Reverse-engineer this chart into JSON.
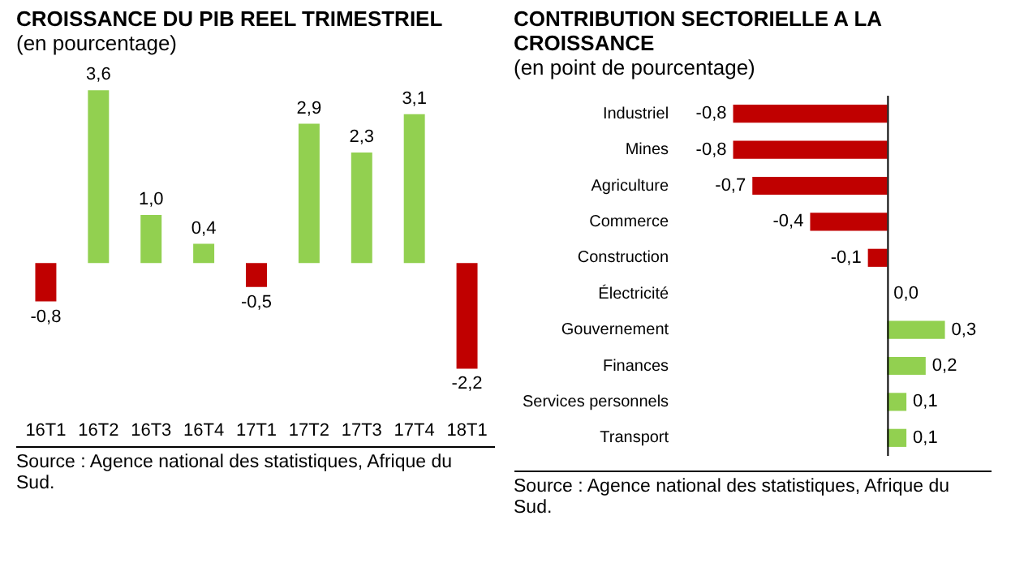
{
  "chart_data": [
    {
      "type": "bar",
      "title": "CROISSANCE DU PIB REEL TRIMESTRIEL",
      "subtitle": "(en pourcentage)",
      "categories": [
        "16T1",
        "16T2",
        "16T3",
        "16T4",
        "17T1",
        "17T2",
        "17T3",
        "17T4",
        "18T1"
      ],
      "values": [
        -0.8,
        3.6,
        1.0,
        0.4,
        -0.5,
        2.9,
        2.3,
        3.1,
        -2.2
      ],
      "colors": [
        "#c00000",
        "#92d050",
        "#92d050",
        "#92d050",
        "#c00000",
        "#92d050",
        "#92d050",
        "#92d050",
        "#c00000"
      ],
      "value_labels": [
        "-0,8",
        "3,6",
        "1,0",
        "0,4",
        "-0,5",
        "2,9",
        "2,3",
        "3,1",
        "-2,2"
      ],
      "annotations": [
        "Source : Agence national des statistiques, Afrique du Sud."
      ]
    },
    {
      "type": "bar",
      "orientation": "horizontal",
      "title": "CONTRIBUTION SECTORIELLE A LA CROISSANCE",
      "subtitle": "(en point de pourcentage)",
      "categories": [
        "Industriel",
        "Mines",
        "Agriculture",
        "Commerce",
        "Construction",
        "Électricité",
        "Gouvernement",
        "Finances",
        "Services personnels",
        "Transport"
      ],
      "values": [
        -0.8,
        -0.8,
        -0.7,
        -0.4,
        -0.1,
        0.0,
        0.3,
        0.2,
        0.1,
        0.1
      ],
      "colors": [
        "#c00000",
        "#c00000",
        "#c00000",
        "#c00000",
        "#c00000",
        "#92d050",
        "#92d050",
        "#92d050",
        "#92d050",
        "#92d050"
      ],
      "value_labels": [
        "-0,8",
        "-0,8",
        "-0,7",
        "-0,4",
        "-0,1",
        "0,0",
        "0,3",
        "0,2",
        "0,1",
        "0,1"
      ],
      "annotations": [
        "Source : Agence national des statistiques, Afrique du Sud."
      ]
    }
  ]
}
